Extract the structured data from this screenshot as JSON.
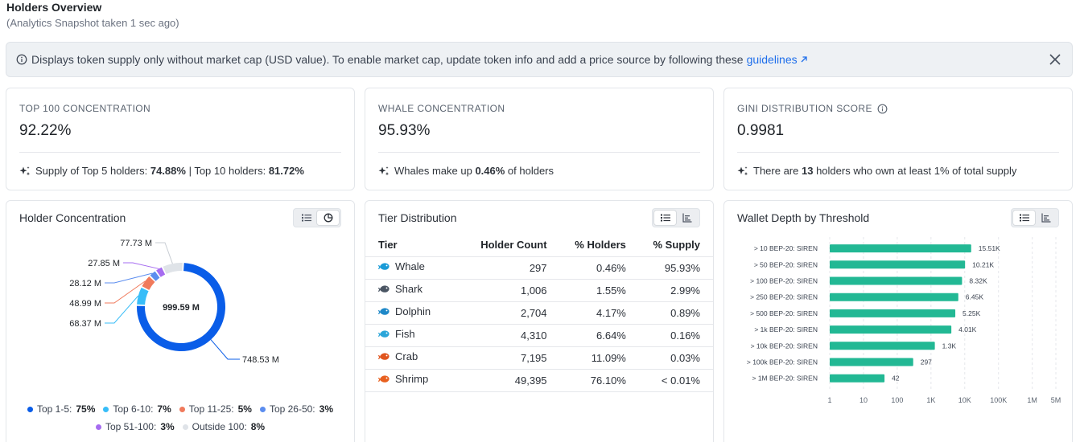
{
  "header": {
    "title": "Holders Overview",
    "subtitle": "(Analytics Snapshot taken 1 sec ago)"
  },
  "banner": {
    "text": "Displays token supply only without market cap (USD value). To enable market cap, update token info and add a price source by following these",
    "link_label": "guidelines",
    "info_icon": "info-circle-icon",
    "close_icon": "close-icon"
  },
  "stats": [
    {
      "label": "TOP 100 CONCENTRATION",
      "value": "92.22%",
      "note_prefix": "Supply of Top 5 holders: ",
      "note_b1": "74.88%",
      "note_mid": " | Top 10 holders: ",
      "note_b2": "81.72%",
      "note_suffix": ""
    },
    {
      "label": "WHALE CONCENTRATION",
      "value": "95.93%",
      "note_prefix": "Whales make up ",
      "note_b1": "0.46%",
      "note_mid": " of holders",
      "note_b2": "",
      "note_suffix": ""
    },
    {
      "label": "GINI DISTRIBUTION SCORE",
      "value": "0.9981",
      "note_prefix": "There are ",
      "note_b1": "13",
      "note_mid": " holders who own at least 1% of total supply",
      "note_b2": "",
      "note_suffix": ""
    }
  ],
  "panels": {
    "holder_concentration": {
      "title": "Holder Concentration",
      "total_label": "999.59 M"
    },
    "tier_distribution": {
      "title": "Tier Distribution"
    },
    "wallet_depth": {
      "title": "Wallet Depth by Threshold"
    }
  },
  "donut": {
    "segments": [
      {
        "name": "Top 1-5",
        "pct_label": "75%",
        "value": 748.53,
        "value_label": "748.53 M",
        "color": "#0a5de8"
      },
      {
        "name": "Top 6-10",
        "pct_label": "7%",
        "value": 68.37,
        "value_label": "68.37 M",
        "color": "#38bdf8"
      },
      {
        "name": "Top 11-25",
        "pct_label": "5%",
        "value": 48.99,
        "value_label": "48.99 M",
        "color": "#f07a5c"
      },
      {
        "name": "Top 26-50",
        "pct_label": "3%",
        "value": 28.12,
        "value_label": "28.12 M",
        "color": "#5b8def"
      },
      {
        "name": "Top 51-100",
        "pct_label": "3%",
        "value": 27.85,
        "value_label": "27.85 M",
        "color": "#a66cf0"
      },
      {
        "name": "Outside 100",
        "pct_label": "8%",
        "value": 77.73,
        "value_label": "77.73 M",
        "color": "#dfe3e8"
      }
    ]
  },
  "tiers": {
    "headers": [
      "Tier",
      "Holder Count",
      "% Holders",
      "% Supply"
    ],
    "rows": [
      {
        "tier": "Whale",
        "icon": "whale-icon",
        "color": "#1a9bd7",
        "count": "297",
        "holders": "0.46%",
        "supply": "95.93%"
      },
      {
        "tier": "Shark",
        "icon": "shark-icon",
        "color": "#4a5563",
        "count": "1,006",
        "holders": "1.55%",
        "supply": "2.99%"
      },
      {
        "tier": "Dolphin",
        "icon": "dolphin-icon",
        "color": "#1e88c8",
        "count": "2,704",
        "holders": "4.17%",
        "supply": "0.89%"
      },
      {
        "tier": "Fish",
        "icon": "fish-icon",
        "color": "#2aa5d9",
        "count": "4,310",
        "holders": "6.64%",
        "supply": "0.16%"
      },
      {
        "tier": "Crab",
        "icon": "crab-icon",
        "color": "#e0551e",
        "count": "7,195",
        "holders": "11.09%",
        "supply": "0.03%"
      },
      {
        "tier": "Shrimp",
        "icon": "shrimp-icon",
        "color": "#e8601f",
        "count": "49,395",
        "holders": "76.10%",
        "supply": "< 0.01%"
      }
    ]
  },
  "chart_data": {
    "type": "bar",
    "orientation": "horizontal",
    "x_scale": "log",
    "categories": [
      "> 10 BEP-20: SIREN",
      "> 50 BEP-20: SIREN",
      "> 100 BEP-20: SIREN",
      "> 250 BEP-20: SIREN",
      "> 500 BEP-20: SIREN",
      "> 1k BEP-20: SIREN",
      "> 10k BEP-20: SIREN",
      "> 100k BEP-20: SIREN",
      "> 1M BEP-20: SIREN"
    ],
    "values": [
      15510,
      10210,
      8320,
      6450,
      5250,
      4010,
      1300,
      297,
      42
    ],
    "value_labels": [
      "15.51K",
      "10.21K",
      "8.32K",
      "6.45K",
      "5.25K",
      "4.01K",
      "1.3K",
      "297",
      "42"
    ],
    "x_ticks": [
      1,
      10,
      100,
      1000,
      10000,
      100000,
      1000000,
      5000000
    ],
    "x_tick_labels": [
      "1",
      "10",
      "100",
      "1K",
      "10K",
      "100K",
      "1M",
      "5M"
    ],
    "xlim": [
      1,
      5000000
    ],
    "bar_color": "#22b894",
    "grid": true,
    "title": "Wallet Depth by Threshold"
  }
}
